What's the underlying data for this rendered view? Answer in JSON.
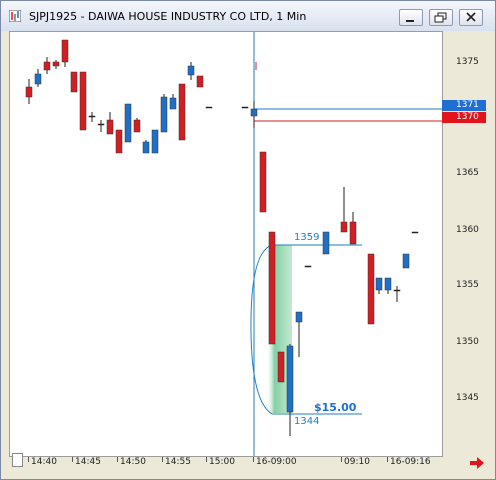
{
  "window": {
    "title": "SJPJ1925 - DAIWA HOUSE INDUSTRY CO LTD, 1 Min",
    "minimize_icon": "minimize-icon",
    "restore_icon": "restore-icon",
    "close_icon": "close-icon"
  },
  "colors": {
    "up": "#1f6fc7",
    "down": "#d21f23",
    "blue_line": "#1f7fbf",
    "red_line": "#d21f23",
    "tag_blue": "#1f6fd2",
    "tag_red": "#e0141a",
    "fill_green": "#70c896"
  },
  "price_axis": {
    "ticks": [
      "1375",
      "1370",
      "1365",
      "1360",
      "1355",
      "1350",
      "1345"
    ],
    "blue_tag": "1371",
    "red_tag": "1370"
  },
  "time_axis": {
    "labels": [
      "14:40",
      "14:45",
      "14:50",
      "14:55",
      "15:00",
      "16-09:00",
      "09:10",
      "16-09:16"
    ]
  },
  "annotations": {
    "level_high": "1359",
    "level_low": "1344",
    "profit": "$15.00"
  },
  "icons": {
    "scroll_right": "red-right-arrow-icon"
  }
}
